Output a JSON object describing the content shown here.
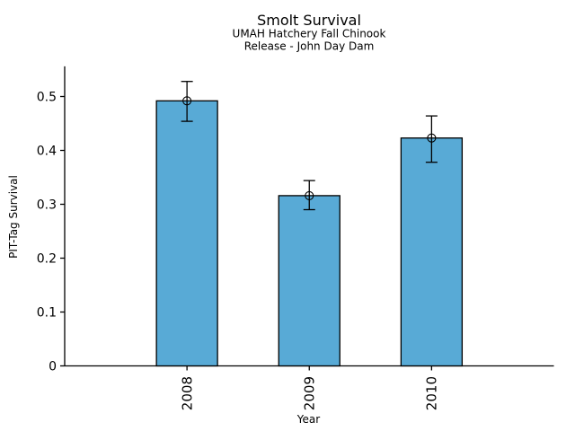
{
  "chart_data": {
    "type": "bar",
    "title": "Smolt Survival",
    "subtitle": [
      "UMAH Hatchery Fall Chinook",
      "Release - John Day Dam"
    ],
    "xlabel": "Year",
    "ylabel": "PIT-Tag Survival",
    "categories": [
      "2008",
      "2009",
      "2010"
    ],
    "series": [
      {
        "name": "PIT-Tag Survival",
        "values": [
          0.492,
          0.316,
          0.423
        ],
        "error_low": [
          0.454,
          0.29,
          0.378
        ],
        "error_high": [
          0.528,
          0.344,
          0.464
        ]
      }
    ],
    "yticks": {
      "values": [
        0,
        0.1,
        0.2,
        0.3,
        0.4,
        0.5
      ],
      "labels": [
        "0",
        "0.1",
        "0.2",
        "0.3",
        "0.4",
        "0.5"
      ]
    },
    "ylim": [
      0,
      0.556
    ],
    "xtick_rotation": -90,
    "grid": false,
    "legend": null,
    "marker": "open-circle",
    "colors": {
      "bar_fill": "#58AAD6",
      "bar_edge": "#000000",
      "error_bar": "#000000",
      "marker_edge": "#000000",
      "axis": "#000000",
      "text": "#000000",
      "background": "#ffffff"
    }
  }
}
